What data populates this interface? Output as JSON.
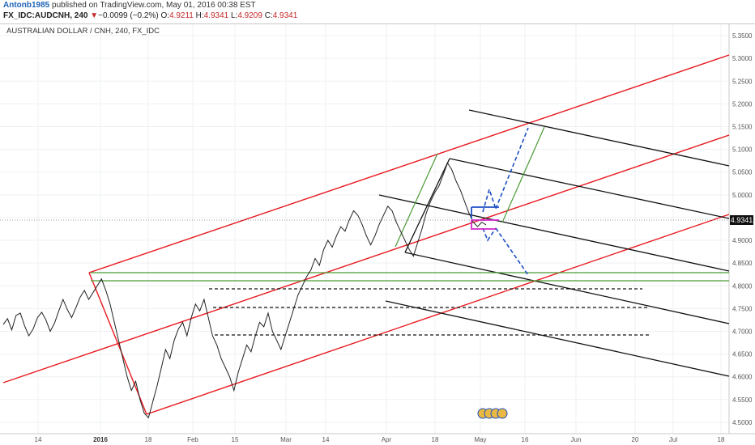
{
  "header": {
    "user": "Antonb1985",
    "published_text": "published on TradingView.com, May 01, 2016 00:38 EST",
    "symbol": "FX_IDC:AUDCNH, 240",
    "change_arrow": "▼",
    "change_text": "−0.0099 (−0.2%)",
    "open_label": "O:",
    "open_value": "4.9211",
    "high_label": "H:",
    "high_value": "4.9341",
    "low_label": "L:",
    "low_value": "4.9209",
    "close_label": "C:",
    "close_value": "4.9341"
  },
  "last_price": "4.9341",
  "colors": {
    "pitchfork_red": "#e8191f",
    "pitchfork_black": "#111111",
    "channel_green": "#4a9a35",
    "projection_blue": "#1d4fc4",
    "box_magenta": "#d326c7",
    "candles": "#222222"
  },
  "chart_data": {
    "type": "line",
    "title": "AUSTRALIAN DOLLAR / CNH, 240, FX_IDC",
    "xlabel": "",
    "ylabel": "",
    "ylim": [
      4.475,
      5.375
    ],
    "x_ticks": [
      {
        "label": "14",
        "bold": false
      },
      {
        "label": "2016",
        "bold": true
      },
      {
        "label": "18",
        "bold": false
      },
      {
        "label": "Feb",
        "bold": false
      },
      {
        "label": "15",
        "bold": false
      },
      {
        "label": "Mar",
        "bold": false
      },
      {
        "label": "14",
        "bold": false
      },
      {
        "label": "Apr",
        "bold": false
      },
      {
        "label": "18",
        "bold": false
      },
      {
        "label": "May",
        "bold": false
      },
      {
        "label": "16",
        "bold": false
      },
      {
        "label": "Jun",
        "bold": false
      },
      {
        "label": "20",
        "bold": false
      },
      {
        "label": "Jul",
        "bold": false
      },
      {
        "label": "18",
        "bold": false
      }
    ],
    "y_ticks": [
      "5.3500",
      "5.3000",
      "5.2500",
      "5.2000",
      "5.1500",
      "5.1000",
      "5.0500",
      "5.0000",
      "4.9500",
      "4.9000",
      "4.8500",
      "4.8000",
      "4.7500",
      "4.7000",
      "4.6500",
      "4.6000",
      "4.5500",
      "4.5000"
    ],
    "series": [
      {
        "values": [
          4.715,
          4.728,
          4.703,
          4.735,
          4.74,
          4.712,
          4.69,
          4.705,
          4.73,
          4.742,
          4.725,
          4.7,
          4.718,
          4.745,
          4.77,
          4.748,
          4.73,
          4.752,
          4.775,
          4.79,
          4.77,
          4.785,
          4.8,
          4.815,
          4.79,
          4.76,
          4.72,
          4.68,
          4.64,
          4.6,
          4.57,
          4.59,
          4.55,
          4.52,
          4.51,
          4.545,
          4.58,
          4.62,
          4.66,
          4.64,
          4.68,
          4.705,
          4.72,
          4.69,
          4.73,
          4.76,
          4.745,
          4.77,
          4.73,
          4.69,
          4.67,
          4.64,
          4.62,
          4.6,
          4.57,
          4.61,
          4.64,
          4.67,
          4.655,
          4.69,
          4.72,
          4.71,
          4.74,
          4.7,
          4.68,
          4.66,
          4.69,
          4.72,
          4.75,
          4.78,
          4.8,
          4.82,
          4.835,
          4.86,
          4.845,
          4.88,
          4.9,
          4.885,
          4.91,
          4.93,
          4.92,
          4.945,
          4.965,
          4.955,
          4.935,
          4.91,
          4.89,
          4.91,
          4.935,
          4.955,
          4.975,
          4.965,
          4.94,
          4.92,
          4.9,
          4.88,
          4.865,
          4.895,
          4.925,
          4.96,
          4.985,
          5.005,
          5.02,
          5.045,
          5.07,
          5.055,
          5.03,
          5.01,
          4.985,
          4.96,
          4.94,
          4.93,
          4.94,
          4.9341
        ]
      }
    ]
  }
}
